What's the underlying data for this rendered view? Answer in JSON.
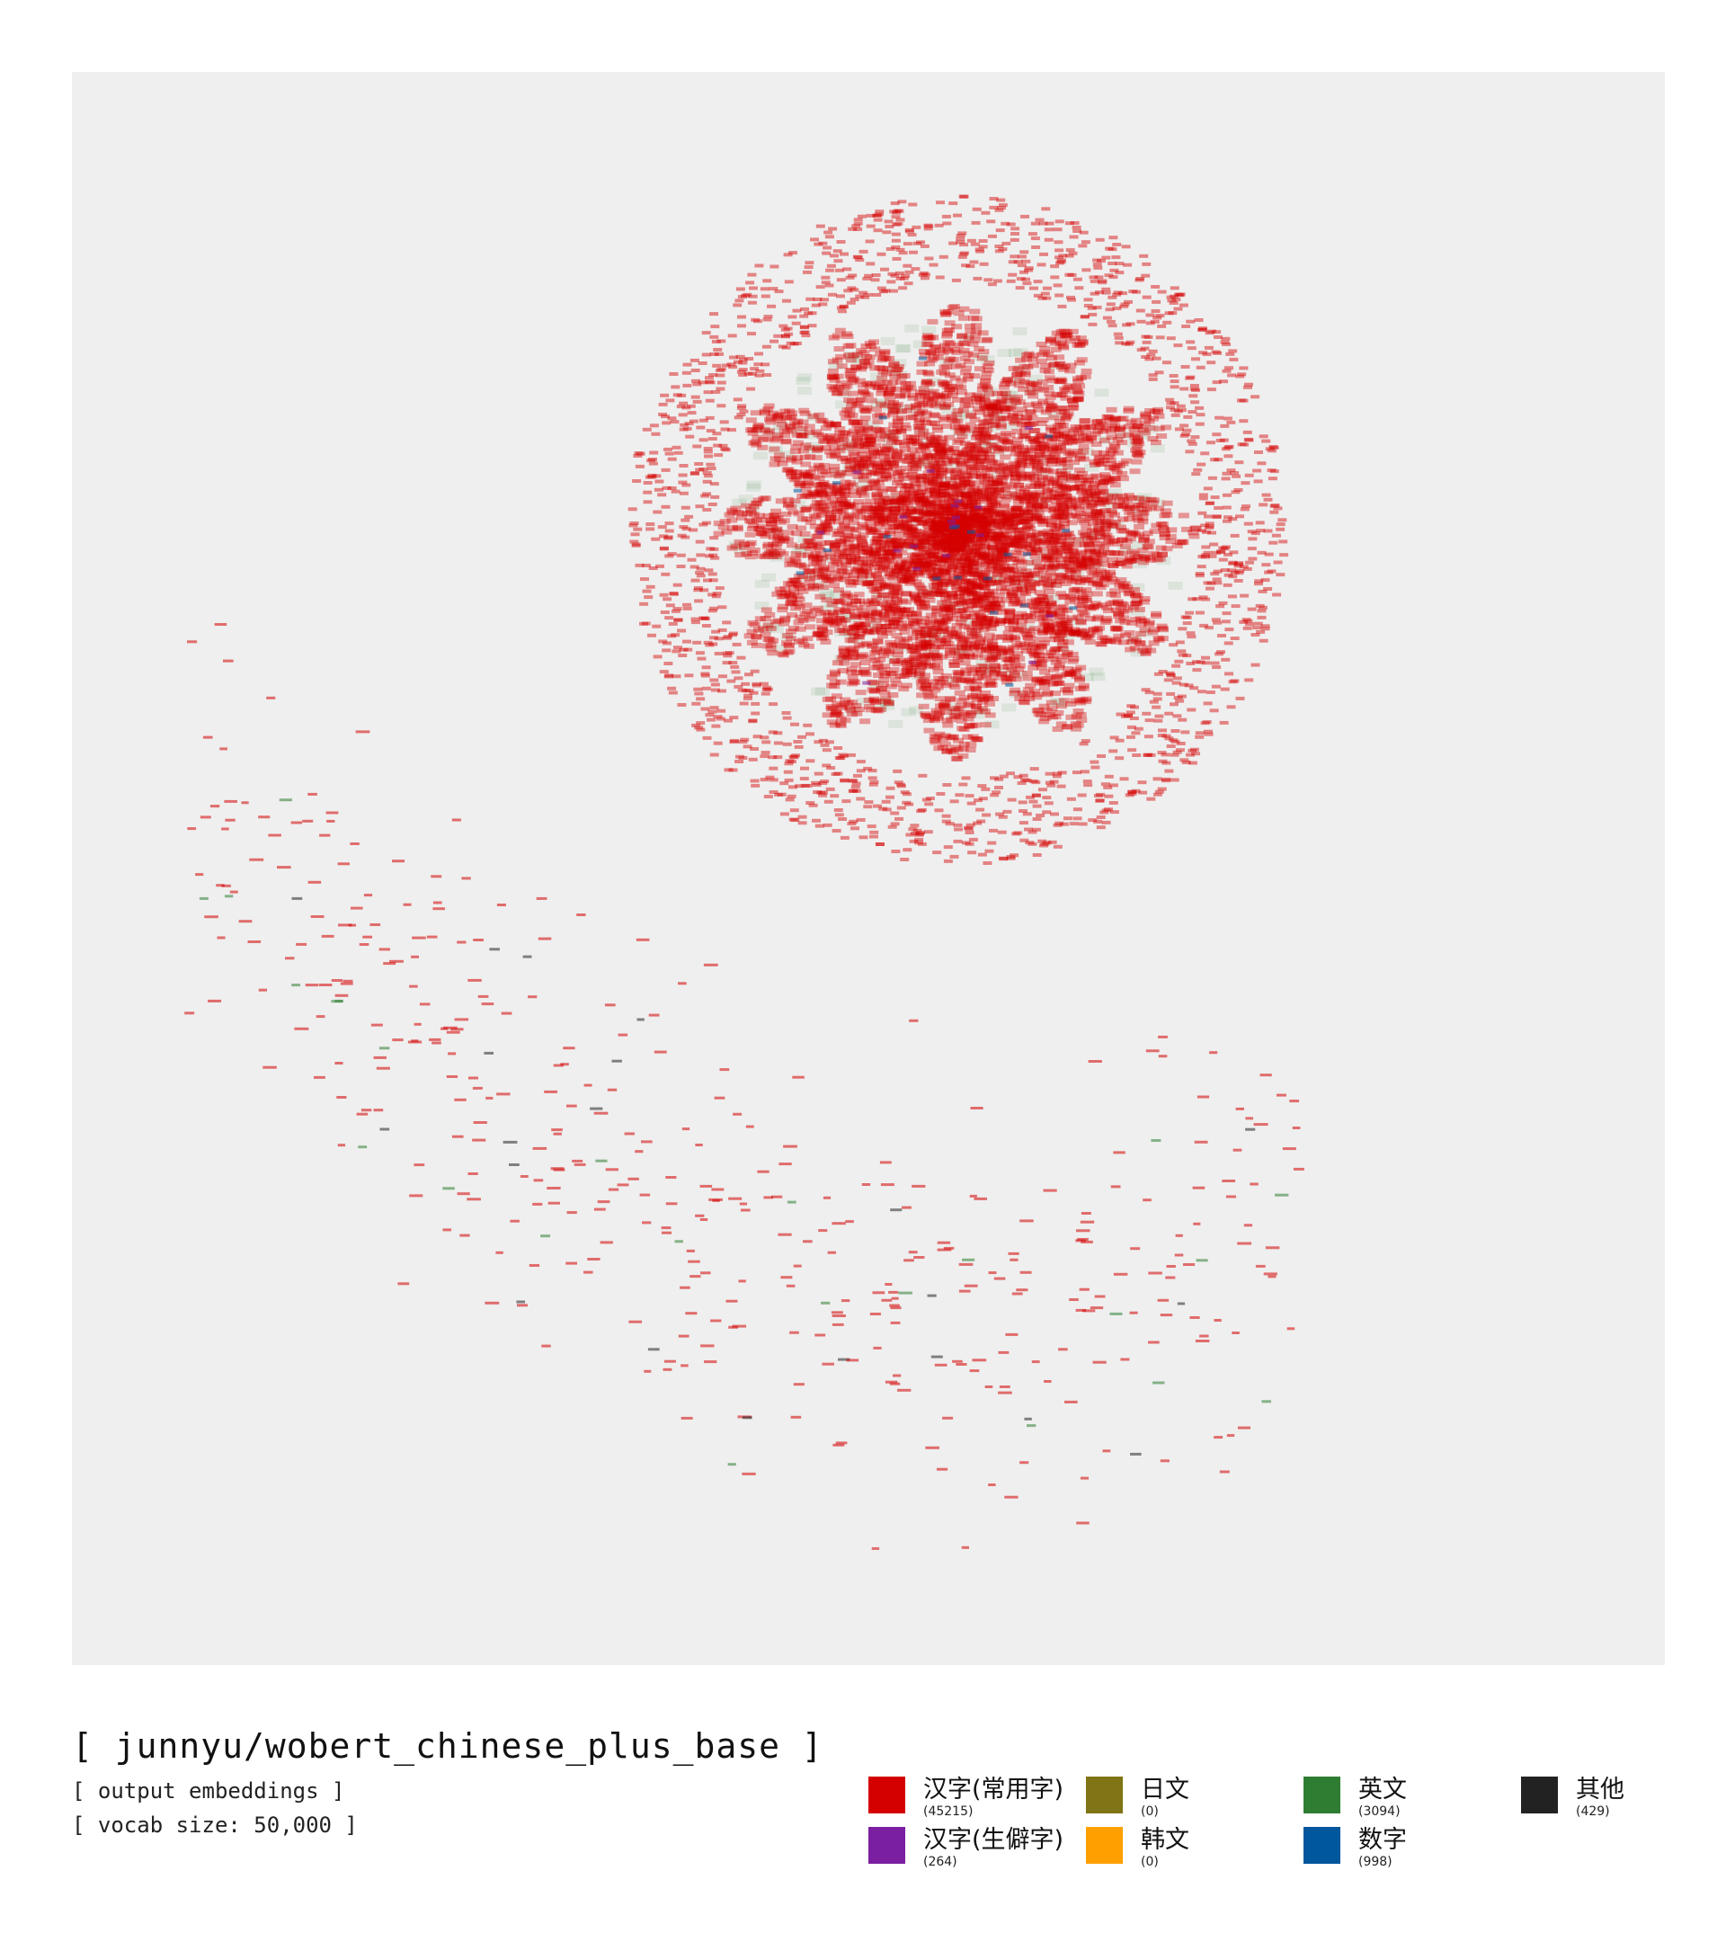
{
  "caption": {
    "title": "[ junnyu/wobert_chinese_plus_base ]",
    "subtitle": "[ output embeddings ]",
    "vocab": "[ vocab size: 50,000 ]"
  },
  "legend": [
    {
      "name": "汉字(常用字)",
      "count": "(45215)",
      "color": "#d40000"
    },
    {
      "name": "日文",
      "count": "(0)",
      "color": "#7f7416"
    },
    {
      "name": "英文",
      "count": "(3094)",
      "color": "#2e7d32"
    },
    {
      "name": "其他",
      "count": "(429)",
      "color": "#222222"
    },
    {
      "name": "汉字(生僻字)",
      "count": "(264)",
      "color": "#7b1fa2"
    },
    {
      "name": "韩文",
      "count": "(0)",
      "color": "#ffa000"
    },
    {
      "name": "数字",
      "count": "(998)",
      "color": "#01579b"
    }
  ],
  "chart_data": {
    "type": "scatter",
    "title": "",
    "xlabel": "",
    "ylabel": "",
    "grid": false,
    "axes_visible": false,
    "description_of_points": "",
    "series": [
      {
        "name": "汉字(常用字)",
        "count": 45215,
        "color": "#d40000"
      },
      {
        "name": "汉字(生僻字)",
        "count": 264,
        "color": "#7b1fa2"
      },
      {
        "name": "日文",
        "count": 0,
        "color": "#7f7416"
      },
      {
        "name": "韩文",
        "count": 0,
        "color": "#ffa000"
      },
      {
        "name": "英文",
        "count": 3094,
        "color": "#2e7d32"
      },
      {
        "name": "数字",
        "count": 998,
        "color": "#01579b"
      },
      {
        "name": "其他",
        "count": 429,
        "color": "#222222"
      }
    ]
  }
}
